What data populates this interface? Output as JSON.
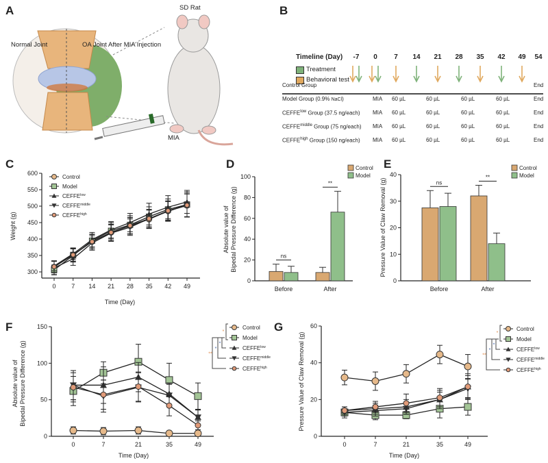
{
  "panels": {
    "A": "A",
    "B": "B",
    "C": "C",
    "D": "D",
    "E": "E",
    "F": "F",
    "G": "G"
  },
  "panel_a": {
    "normal_joint": "Normal Joint",
    "oa_joint": "OA Joint After MIA Injection",
    "sd_rat": "SD Rat",
    "mia": "MIA"
  },
  "panel_b": {
    "timeline_title": "Timeline (Day)",
    "legend": {
      "treatment": "Treatment",
      "behavioral": "Behavioral test"
    },
    "colors": {
      "treatment": "#7fb27a",
      "behavioral": "#e0a85e"
    },
    "days": [
      {
        "day": "-7",
        "behavioral": true,
        "treatment": true
      },
      {
        "day": "0",
        "behavioral": true,
        "treatment": true
      },
      {
        "day": "7",
        "behavioral": true,
        "treatment": false
      },
      {
        "day": "14",
        "behavioral": false,
        "treatment": true
      },
      {
        "day": "21",
        "behavioral": true,
        "treatment": false
      },
      {
        "day": "28",
        "behavioral": false,
        "treatment": true
      },
      {
        "day": "35",
        "behavioral": true,
        "treatment": false
      },
      {
        "day": "42",
        "behavioral": false,
        "treatment": true
      },
      {
        "day": "49",
        "behavioral": true,
        "treatment": false
      },
      {
        "day": "54",
        "behavioral": false,
        "treatment": false
      }
    ],
    "groups": [
      {
        "pre": "Control Group",
        "sup": "",
        "small": "",
        "post": "",
        "cells": [
          "",
          "",
          "",
          "",
          "",
          ""
        ],
        "end": "End"
      },
      {
        "pre": "Model Group (0.9% ",
        "sup": "",
        "small": "NaCl",
        "post": ")",
        "cells": [
          "MIA",
          "60 µL",
          "60 µL",
          "60 µL",
          "60 µL"
        ],
        "end": "End"
      },
      {
        "pre": "CEFFE",
        "sup": "low",
        "small": "",
        "post": " Group (37.5 ng/each)",
        "cells": [
          "MIA",
          "60 µL",
          "60 µL",
          "60 µL",
          "60 µL"
        ],
        "end": "End"
      },
      {
        "pre": "CEFFE",
        "sup": "middle",
        "small": "",
        "post": " Group (75 ng/each)",
        "cells": [
          "MIA",
          "60 µL",
          "60 µL",
          "60 µL",
          "60 µL"
        ],
        "end": "End"
      },
      {
        "pre": "CEFFE",
        "sup": "high",
        "small": "",
        "post": " Group (150 ng/each)",
        "cells": [
          "MIA",
          "60 µL",
          "60 µL",
          "60 µL",
          "60 µL"
        ],
        "end": "End"
      }
    ]
  },
  "series_style": {
    "Control": {
      "marker": "circle",
      "fill": "#e6b98a"
    },
    "Model": {
      "marker": "square",
      "fill": "#a3c596"
    },
    "CEFFE low": {
      "marker": "triangle-up",
      "fill": "#333333"
    },
    "CEFFE middle": {
      "marker": "triangle-down",
      "fill": "#333333"
    },
    "CEFFE high": {
      "marker": "circle-small",
      "fill": "#e09a78"
    }
  },
  "chart_data": [
    {
      "panel": "C",
      "type": "line",
      "title": "",
      "xlabel": "Time (Day)",
      "ylabel": "Weight (g)",
      "x": [
        0,
        7,
        14,
        21,
        28,
        35,
        42,
        49
      ],
      "xticks": [
        "0",
        "7",
        "14",
        "21",
        "28",
        "35",
        "42",
        "49"
      ],
      "ylim": [
        300,
        600
      ],
      "yticks": [
        300,
        350,
        400,
        450,
        500,
        550,
        600
      ],
      "grid": false,
      "legend": "right",
      "series": [
        {
          "name": "Control",
          "base": "Control",
          "sup": "",
          "values": [
            315,
            352,
            392,
            420,
            440,
            460,
            485,
            502
          ],
          "err": [
            18,
            20,
            22,
            25,
            25,
            28,
            30,
            35
          ]
        },
        {
          "name": "Model",
          "base": "Model",
          "sup": "",
          "values": [
            306,
            350,
            395,
            425,
            443,
            468,
            490,
            505
          ],
          "err": [
            15,
            20,
            20,
            25,
            28,
            30,
            32,
            38
          ]
        },
        {
          "name": "CEFFE low",
          "base": "CEFFE",
          "sup": "low",
          "values": [
            318,
            355,
            398,
            428,
            450,
            476,
            497,
            513
          ],
          "err": [
            15,
            18,
            22,
            25,
            28,
            33,
            35,
            35
          ]
        },
        {
          "name": "CEFFE middle",
          "base": "CEFFE",
          "sup": "middle",
          "values": [
            312,
            340,
            388,
            418,
            436,
            462,
            484,
            505
          ],
          "err": [
            20,
            20,
            22,
            25,
            25,
            28,
            30,
            38
          ]
        },
        {
          "name": "CEFFE high",
          "base": "CEFFE",
          "sup": "high",
          "values": [
            316,
            352,
            392,
            420,
            441,
            462,
            486,
            503
          ],
          "err": [
            18,
            20,
            22,
            25,
            25,
            28,
            30,
            35
          ]
        }
      ]
    },
    {
      "panel": "D",
      "type": "bar",
      "xlabel": "",
      "ylabel": [
        "Absolute value of",
        "Bipedal Pressure Difference (g)"
      ],
      "categories": [
        "Before",
        "After"
      ],
      "ylim": [
        0,
        100
      ],
      "yticks": [
        0,
        20,
        40,
        60,
        80,
        100
      ],
      "legend": "top-right",
      "series": [
        {
          "name": "Control",
          "color": "#d9a871",
          "values": [
            9,
            8
          ],
          "err": [
            7,
            5
          ]
        },
        {
          "name": "Model",
          "color": "#8fbf8a",
          "values": [
            8,
            66
          ],
          "err": [
            6,
            20
          ]
        }
      ],
      "annotations": [
        "ns",
        "**"
      ]
    },
    {
      "panel": "E",
      "type": "bar",
      "xlabel": "",
      "ylabel": [
        "Pressure Value of Claw Removal (g)"
      ],
      "categories": [
        "Before",
        "After"
      ],
      "ylim": [
        0,
        40
      ],
      "yticks": [
        0,
        10,
        20,
        30,
        40
      ],
      "legend": "top-right",
      "series": [
        {
          "name": "Control",
          "color": "#d9a871",
          "values": [
            27.5,
            32
          ],
          "err": [
            6.5,
            4
          ]
        },
        {
          "name": "Model",
          "color": "#8fbf8a",
          "values": [
            28,
            14
          ],
          "err": [
            5,
            4
          ]
        }
      ],
      "annotations": [
        "ns",
        "**"
      ]
    },
    {
      "panel": "F",
      "type": "line",
      "xlabel": "Time (Day)",
      "ylabel": [
        "Absolute value of",
        "Bipedal Pressure Difference (g)"
      ],
      "x": [
        0,
        7,
        21,
        35,
        49
      ],
      "xticks": [
        "0",
        "7",
        "21",
        "35",
        "49"
      ],
      "ylim": [
        0,
        150
      ],
      "yticks": [
        0,
        50,
        100,
        150
      ],
      "legend": "right",
      "series": [
        {
          "name": "Control",
          "base": "Control",
          "sup": "",
          "values": [
            8,
            7,
            8,
            4,
            4
          ],
          "err": [
            5,
            5,
            5,
            3,
            3
          ]
        },
        {
          "name": "Model",
          "base": "Model",
          "sup": "",
          "values": [
            62,
            87,
            102,
            77,
            55
          ],
          "err": [
            20,
            15,
            24,
            23,
            18
          ]
        },
        {
          "name": "CEFFE low",
          "base": "CEFFE",
          "sup": "low",
          "values": [
            70,
            70,
            81,
            58,
            26
          ],
          "err": [
            20,
            25,
            20,
            15,
            10
          ]
        },
        {
          "name": "CEFFE middle",
          "base": "CEFFE",
          "sup": "middle",
          "values": [
            70,
            55,
            67,
            56,
            26
          ],
          "err": [
            20,
            22,
            20,
            15,
            10
          ]
        },
        {
          "name": "CEFFE high",
          "base": "CEFFE",
          "sup": "high",
          "values": [
            67,
            57,
            68,
            42,
            15
          ],
          "err": [
            20,
            20,
            20,
            14,
            6
          ]
        }
      ],
      "significance": [
        "*",
        "*",
        "*",
        "**"
      ]
    },
    {
      "panel": "G",
      "type": "line",
      "xlabel": "Time (Day)",
      "ylabel": [
        "Pressure Value of Claw Removal (g)"
      ],
      "x": [
        0,
        7,
        21,
        35,
        49
      ],
      "xticks": [
        "0",
        "7",
        "21",
        "35",
        "49"
      ],
      "ylim": [
        0,
        60
      ],
      "yticks": [
        0,
        20,
        40,
        60
      ],
      "legend": "right",
      "series": [
        {
          "name": "Control",
          "base": "Control",
          "sup": "",
          "values": [
            32,
            30,
            34,
            44.5,
            38
          ],
          "err": [
            4,
            5,
            5,
            5,
            6.5
          ]
        },
        {
          "name": "Model",
          "base": "Model",
          "sup": "",
          "values": [
            13,
            11.5,
            11.5,
            15,
            16
          ],
          "err": [
            3,
            2.5,
            2,
            5,
            4.5
          ]
        },
        {
          "name": "CEFFE low",
          "base": "CEFFE",
          "sup": "low",
          "values": [
            14,
            15,
            16,
            20,
            27
          ],
          "err": [
            2,
            3,
            4,
            5,
            6
          ]
        },
        {
          "name": "CEFFE middle",
          "base": "CEFFE",
          "sup": "middle",
          "values": [
            13,
            14,
            15,
            20,
            26
          ],
          "err": [
            2,
            3,
            3,
            4,
            5
          ]
        },
        {
          "name": "CEFFE high",
          "base": "CEFFE",
          "sup": "high",
          "values": [
            14,
            16,
            18,
            21,
            27
          ],
          "err": [
            2,
            3,
            5,
            5,
            7
          ]
        }
      ],
      "significance": [
        "*",
        "*",
        "*",
        "**"
      ]
    }
  ]
}
